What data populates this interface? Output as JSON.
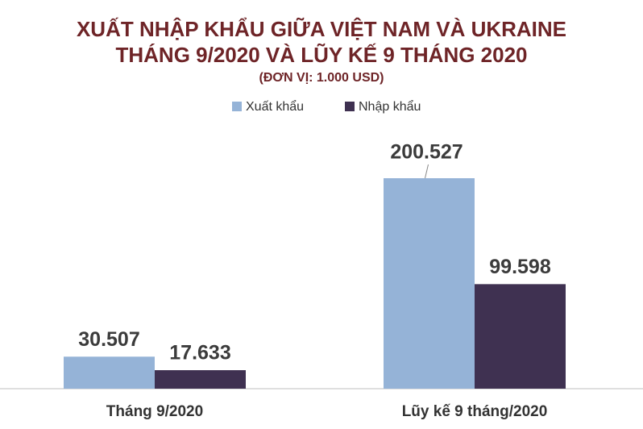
{
  "chart_data": {
    "type": "bar",
    "title": "XUẤT NHẬP KHẨU GIỮA VIỆT NAM VÀ UKRAINE",
    "subtitle": "THÁNG 9/2020 VÀ LŨY KẾ 9 THÁNG 2020",
    "note": "(ĐƠN VỊ: 1.000 USD)",
    "categories": [
      "Tháng 9/2020",
      "Lũy kế 9 tháng/2020"
    ],
    "series": [
      {
        "name": "Xuất khẩu",
        "color": "#95b3d7",
        "values": [
          30507,
          200527
        ],
        "value_labels": [
          "30.507",
          "200.527"
        ]
      },
      {
        "name": "Nhập khẩu",
        "color": "#3f3151",
        "values": [
          17633,
          99598
        ],
        "value_labels": [
          "17.633",
          "99.598"
        ]
      }
    ]
  }
}
